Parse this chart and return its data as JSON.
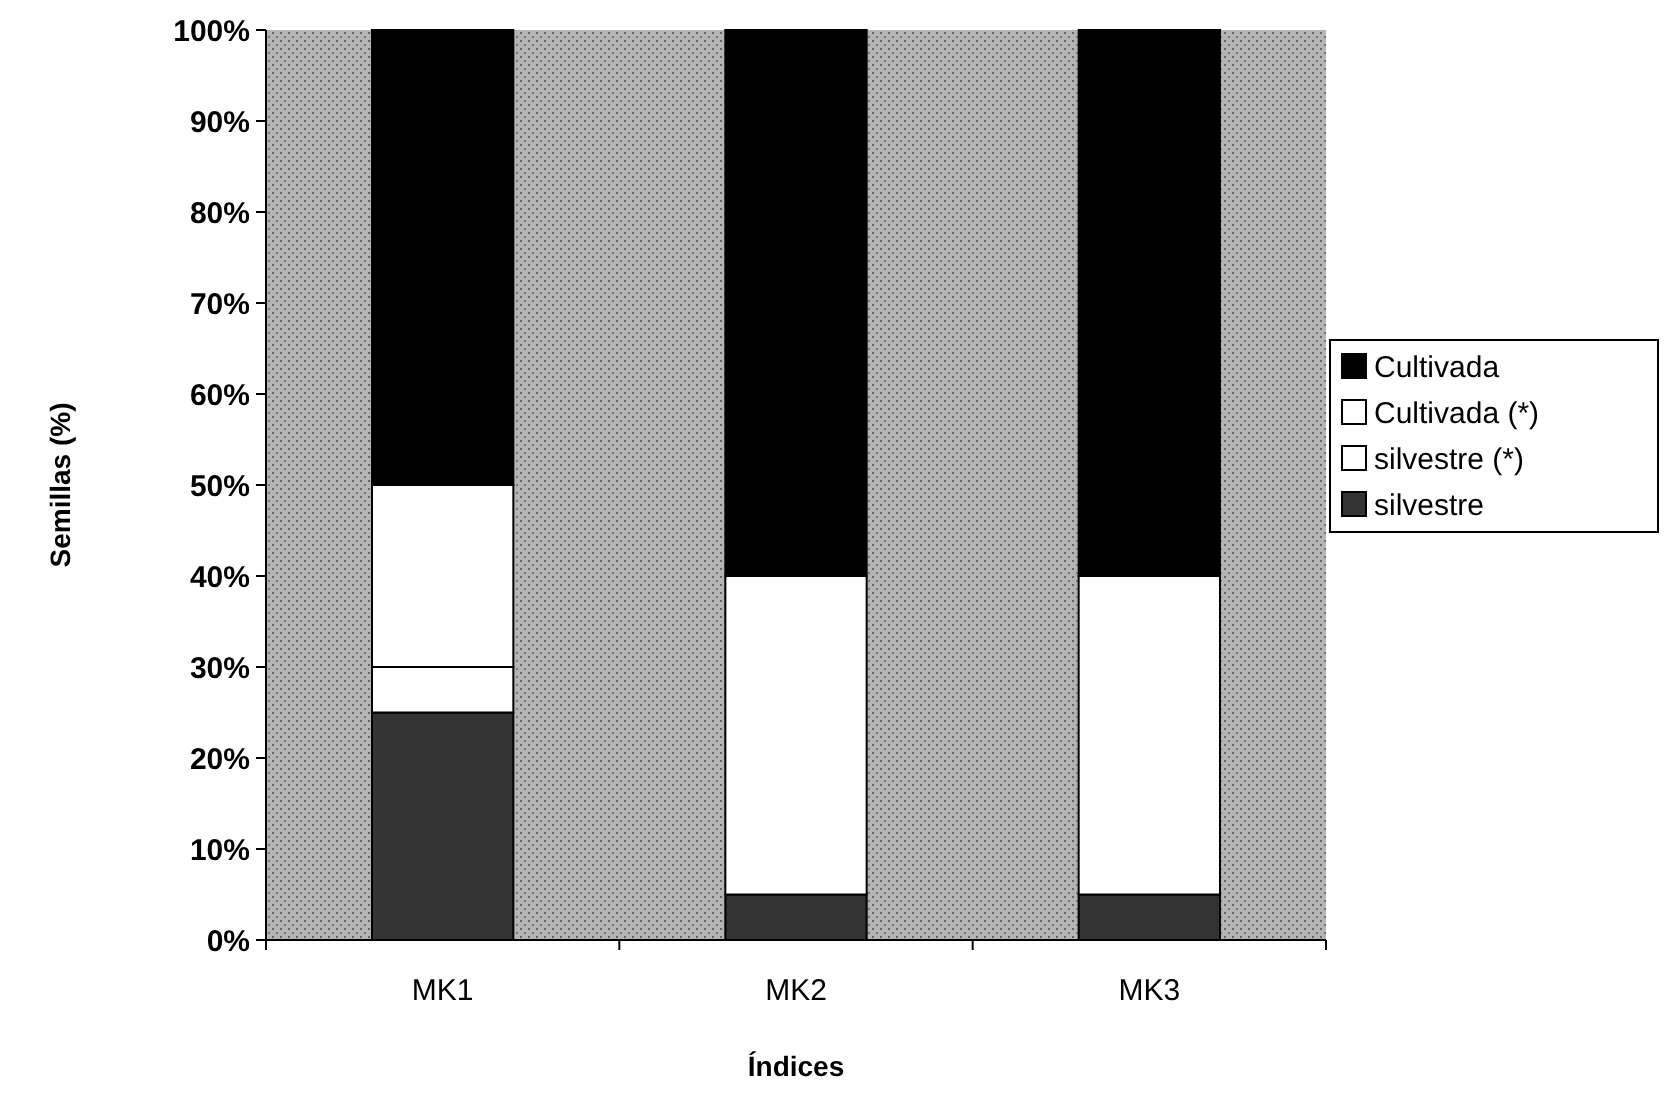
{
  "chart_data": {
    "type": "bar",
    "stacked": true,
    "xlabel": "Índices",
    "ylabel": "Semillas (%)",
    "categories": [
      "MK1",
      "MK2",
      "MK3"
    ],
    "series": [
      {
        "name": "silvestre",
        "color": "#333333",
        "values": [
          25,
          5,
          5
        ]
      },
      {
        "name": "silvestre (*)",
        "color": "#ffffff",
        "values": [
          5,
          35,
          35
        ]
      },
      {
        "name": "Cultivada (*)",
        "color": "#ffffff",
        "values": [
          20,
          0,
          0
        ]
      },
      {
        "name": "Cultivada",
        "color": "#000000",
        "values": [
          50,
          60,
          60
        ]
      }
    ],
    "ylim": [
      0,
      100
    ],
    "yticks": [
      {
        "value": 0,
        "label": "0%"
      },
      {
        "value": 10,
        "label": "10%"
      },
      {
        "value": 20,
        "label": "20%"
      },
      {
        "value": 30,
        "label": "30%"
      },
      {
        "value": 40,
        "label": "40%"
      },
      {
        "value": 50,
        "label": "50%"
      },
      {
        "value": 60,
        "label": "60%"
      },
      {
        "value": 70,
        "label": "70%"
      },
      {
        "value": 80,
        "label": "80%"
      },
      {
        "value": 90,
        "label": "90%"
      },
      {
        "value": 100,
        "label": "100%"
      }
    ],
    "legend": "right",
    "grid": false
  }
}
